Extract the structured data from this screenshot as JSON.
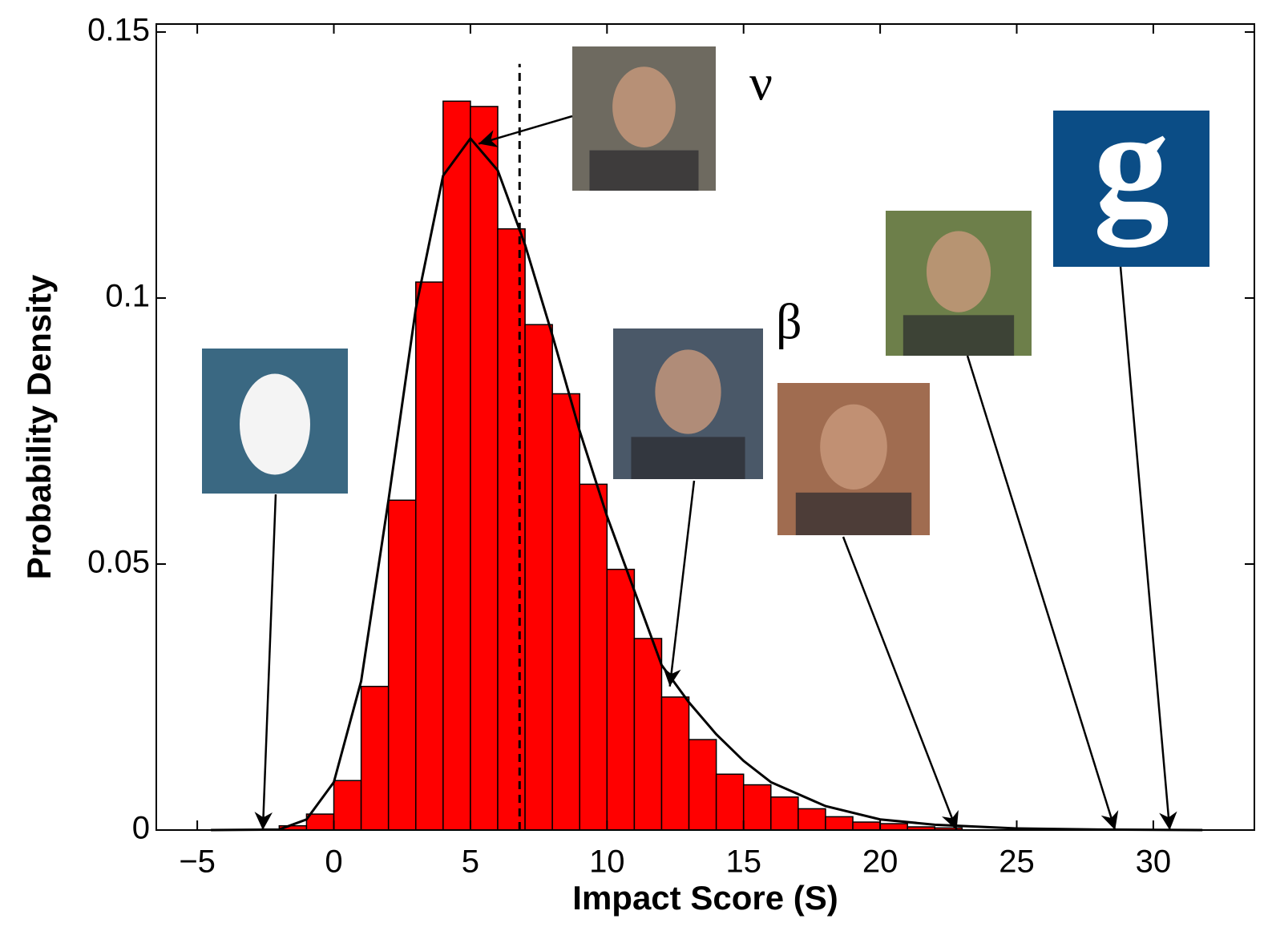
{
  "chart_data": {
    "type": "histogram",
    "xlabel": "Impact Score (S)",
    "ylabel": "Probability Density",
    "bins": [
      -2,
      -1,
      0,
      1,
      2,
      3,
      4,
      5,
      6,
      7,
      8,
      9,
      10,
      11,
      12,
      13,
      14,
      15,
      16,
      17,
      18,
      19,
      20,
      21,
      22,
      23
    ],
    "values": [
      0.0008,
      0.003,
      0.0093,
      0.027,
      0.062,
      0.103,
      0.137,
      0.136,
      0.113,
      0.095,
      0.082,
      0.065,
      0.049,
      0.036,
      0.025,
      0.017,
      0.0105,
      0.0085,
      0.0062,
      0.004,
      0.0025,
      0.0015,
      0.0012,
      0.0006,
      0.0004
    ],
    "color": "#ff0000",
    "fit": {
      "color": "#000000",
      "x": [
        -4.5,
        -2,
        -1,
        0,
        1,
        2,
        3,
        4,
        5,
        6,
        7,
        8,
        9,
        10,
        11,
        12,
        13,
        14,
        15,
        16,
        18,
        20,
        22,
        25,
        28,
        31.8
      ],
      "values": [
        0,
        0.0001,
        0.002,
        0.009,
        0.028,
        0.062,
        0.098,
        0.123,
        0.13,
        0.124,
        0.11,
        0.093,
        0.075,
        0.059,
        0.045,
        0.031,
        0.024,
        0.018,
        0.013,
        0.009,
        0.0045,
        0.002,
        0.001,
        0.0003,
        0.0001,
        0
      ]
    },
    "mean_line": {
      "x": 6.8,
      "top": 0.144
    },
    "pointers": [
      {
        "x": -2.6,
        "y": 0
      },
      {
        "x": 5.3,
        "y": 0.129,
        "label": "ν"
      },
      {
        "x": 12.3,
        "y": 0.027
      },
      {
        "x": 22.8,
        "y": 0,
        "label": "β"
      },
      {
        "x": 28.6,
        "y": 0
      },
      {
        "x": 30.6,
        "y": 0,
        "label": "g"
      }
    ],
    "xlim": [
      -6.5,
      33.7
    ],
    "ylim": [
      0,
      0.1515
    ],
    "xticks": [
      {
        "value": -5,
        "label": "−5"
      },
      0,
      5,
      10,
      15,
      20,
      25,
      30
    ],
    "yticks": [
      0,
      0.05,
      0.1,
      0.15
    ]
  }
}
